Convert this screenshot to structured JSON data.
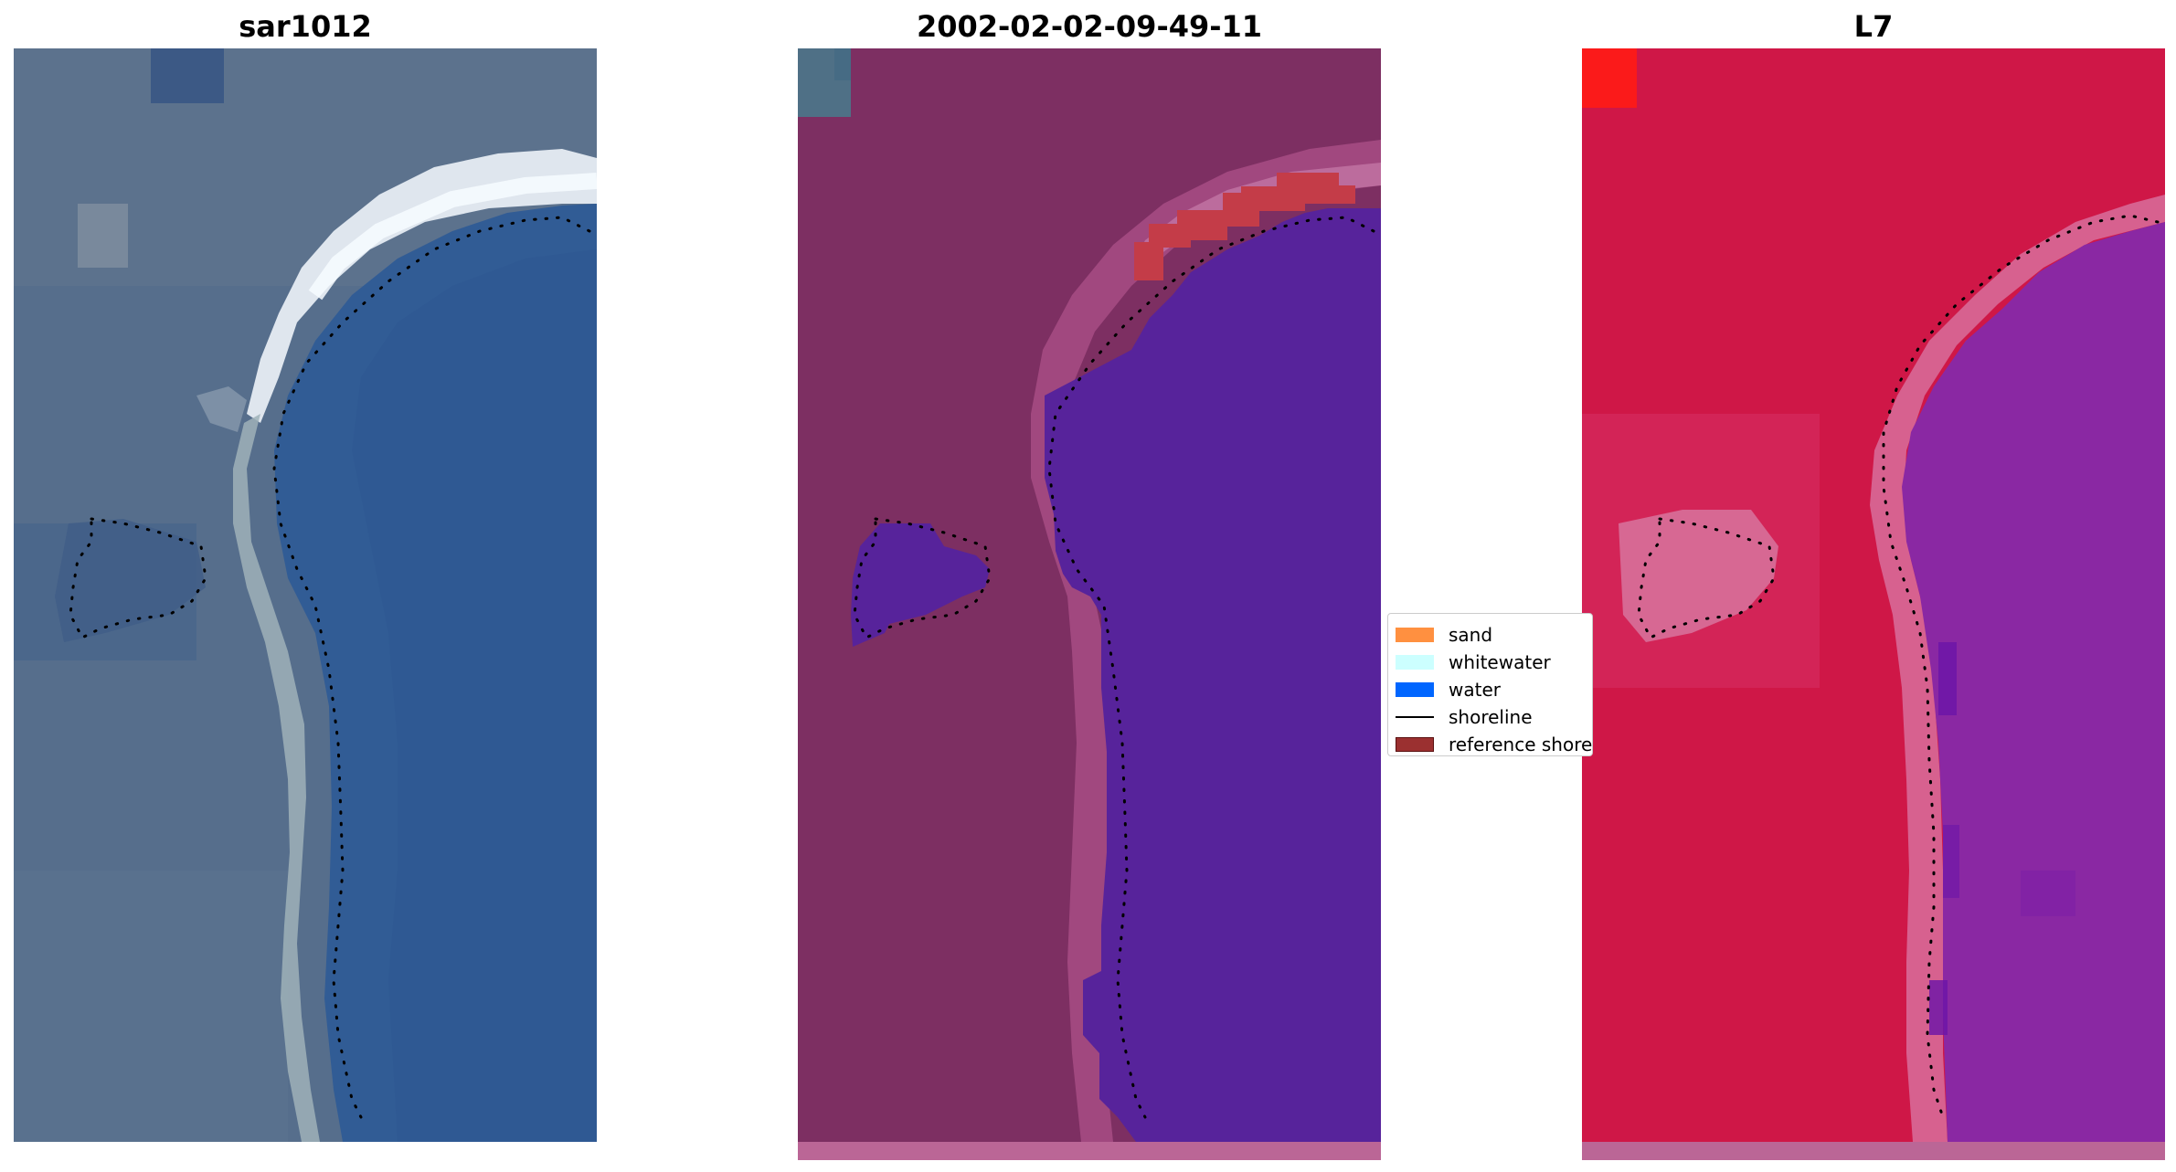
{
  "panels": [
    {
      "title": "sar1012",
      "kind": "rgb-image"
    },
    {
      "title": "2002-02-02-09-49-11",
      "kind": "classified-image"
    },
    {
      "title": "L7",
      "kind": "false-color-image"
    }
  ],
  "legend": {
    "items": [
      {
        "label": "sand",
        "type": "patch",
        "color": "#ff9040"
      },
      {
        "label": "whitewater",
        "type": "patch",
        "color": "#ccffff"
      },
      {
        "label": "water",
        "type": "patch",
        "color": "#0066ff"
      },
      {
        "label": "shoreline",
        "type": "line",
        "color": "#000000"
      },
      {
        "label": "reference shoreline buffer",
        "type": "patch",
        "color": "#9b3030"
      }
    ]
  },
  "colors": {
    "rgb_background": "#536b8c",
    "rgb_water": "#2e5a94",
    "rgb_surf": "#dfe6ee",
    "classified_land": "#7d2f62",
    "classified_water": "#57239b",
    "classified_sand_buffer": "#c43c48",
    "falsecolor_land": "#cf1747",
    "falsecolor_water": "#8a28a3",
    "falsecolor_edge": "#d86f9c",
    "shoreline_dots": "#000000"
  }
}
